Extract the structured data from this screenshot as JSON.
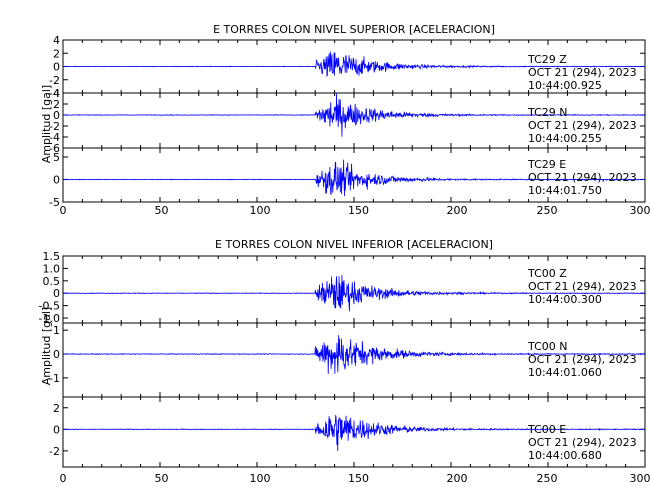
{
  "figure": {
    "panels": [
      {
        "title": "E TORRES COLON NIVEL SUPERIOR [ACELERACION]",
        "ylabel": "Amplitud [gal]",
        "traces": [
          {
            "station": "TC29",
            "component": "Z",
            "date": "OCT 21 (294), 2023",
            "time": "10:44:00.925",
            "ylim": [
              -4,
              4
            ],
            "yticks": [
              4,
              2,
              0,
              -2,
              -4
            ]
          },
          {
            "station": "TC29",
            "component": "N",
            "date": "OCT 21 (294), 2023",
            "time": "10:44:00.255",
            "ylim": [
              -6,
              4
            ],
            "yticks": [
              4,
              2,
              0,
              -2,
              -4,
              -6
            ]
          },
          {
            "station": "TC29",
            "component": "E",
            "date": "OCT 21 (294), 2023",
            "time": "10:44:01.750",
            "ylim": [
              -5,
              7
            ],
            "yticks": [
              5,
              0,
              -5
            ]
          }
        ]
      },
      {
        "title": "E TORRES COLON NIVEL INFERIOR [ACELERACION]",
        "ylabel": "Amplitud [gal]",
        "traces": [
          {
            "station": "TC00",
            "component": "Z",
            "date": "OCT 21 (294), 2023",
            "time": "10:44:00.300",
            "ylim": [
              -1.2,
              1.5
            ],
            "yticks": [
              "1.5",
              "1.0",
              "0.5",
              "0",
              "-0.5",
              "-1.0"
            ]
          },
          {
            "station": "TC00",
            "component": "N",
            "date": "OCT 21 (294), 2023",
            "time": "10:44:01.060",
            "ylim": [
              -1.8,
              1.3
            ],
            "yticks": [
              1,
              0,
              -1
            ]
          },
          {
            "station": "TC00",
            "component": "E",
            "date": "OCT 21 (294), 2023",
            "time": "10:44:00.680",
            "ylim": [
              -3.5,
              3
            ],
            "yticks": [
              2,
              0,
              -2
            ]
          }
        ]
      }
    ]
  },
  "chart_data": [
    {
      "type": "line",
      "title": "E TORRES COLON NIVEL SUPERIOR [ACELERACION]",
      "xlabel": "",
      "ylabel": "Amplitud [gal]",
      "xlim": [
        0,
        300
      ],
      "xticks": [
        0,
        50,
        100,
        150,
        200,
        250,
        300
      ],
      "grid": false,
      "line_color": "#0000ff",
      "series": [
        {
          "name": "TC29 Z",
          "onset_s": 130,
          "peak_s": 140,
          "peak_amplitude": 4.3,
          "ylim": [
            -4,
            4
          ]
        },
        {
          "name": "TC29 N",
          "onset_s": 130,
          "peak_s": 140,
          "peak_amplitude": 5.5,
          "ylim": [
            -6,
            4
          ]
        },
        {
          "name": "TC29 E",
          "onset_s": 130,
          "peak_s": 140,
          "peak_amplitude": 6.5,
          "ylim": [
            -5,
            7
          ]
        }
      ]
    },
    {
      "type": "line",
      "title": "E TORRES COLON NIVEL INFERIOR [ACELERACION]",
      "xlabel": "",
      "ylabel": "Amplitud [gal]",
      "xlim": [
        0,
        300
      ],
      "xticks": [
        0,
        50,
        100,
        150,
        200,
        250,
        300
      ],
      "grid": false,
      "line_color": "#0000ff",
      "series": [
        {
          "name": "TC00 Z",
          "onset_s": 130,
          "peak_s": 140,
          "peak_amplitude": 1.3,
          "ylim": [
            -1.2,
            1.5
          ]
        },
        {
          "name": "TC00 N",
          "onset_s": 130,
          "peak_s": 140,
          "peak_amplitude": 1.6,
          "ylim": [
            -1.8,
            1.3
          ]
        },
        {
          "name": "TC00 E",
          "onset_s": 130,
          "peak_s": 140,
          "peak_amplitude": 3.2,
          "ylim": [
            -3.5,
            3
          ]
        }
      ]
    }
  ]
}
